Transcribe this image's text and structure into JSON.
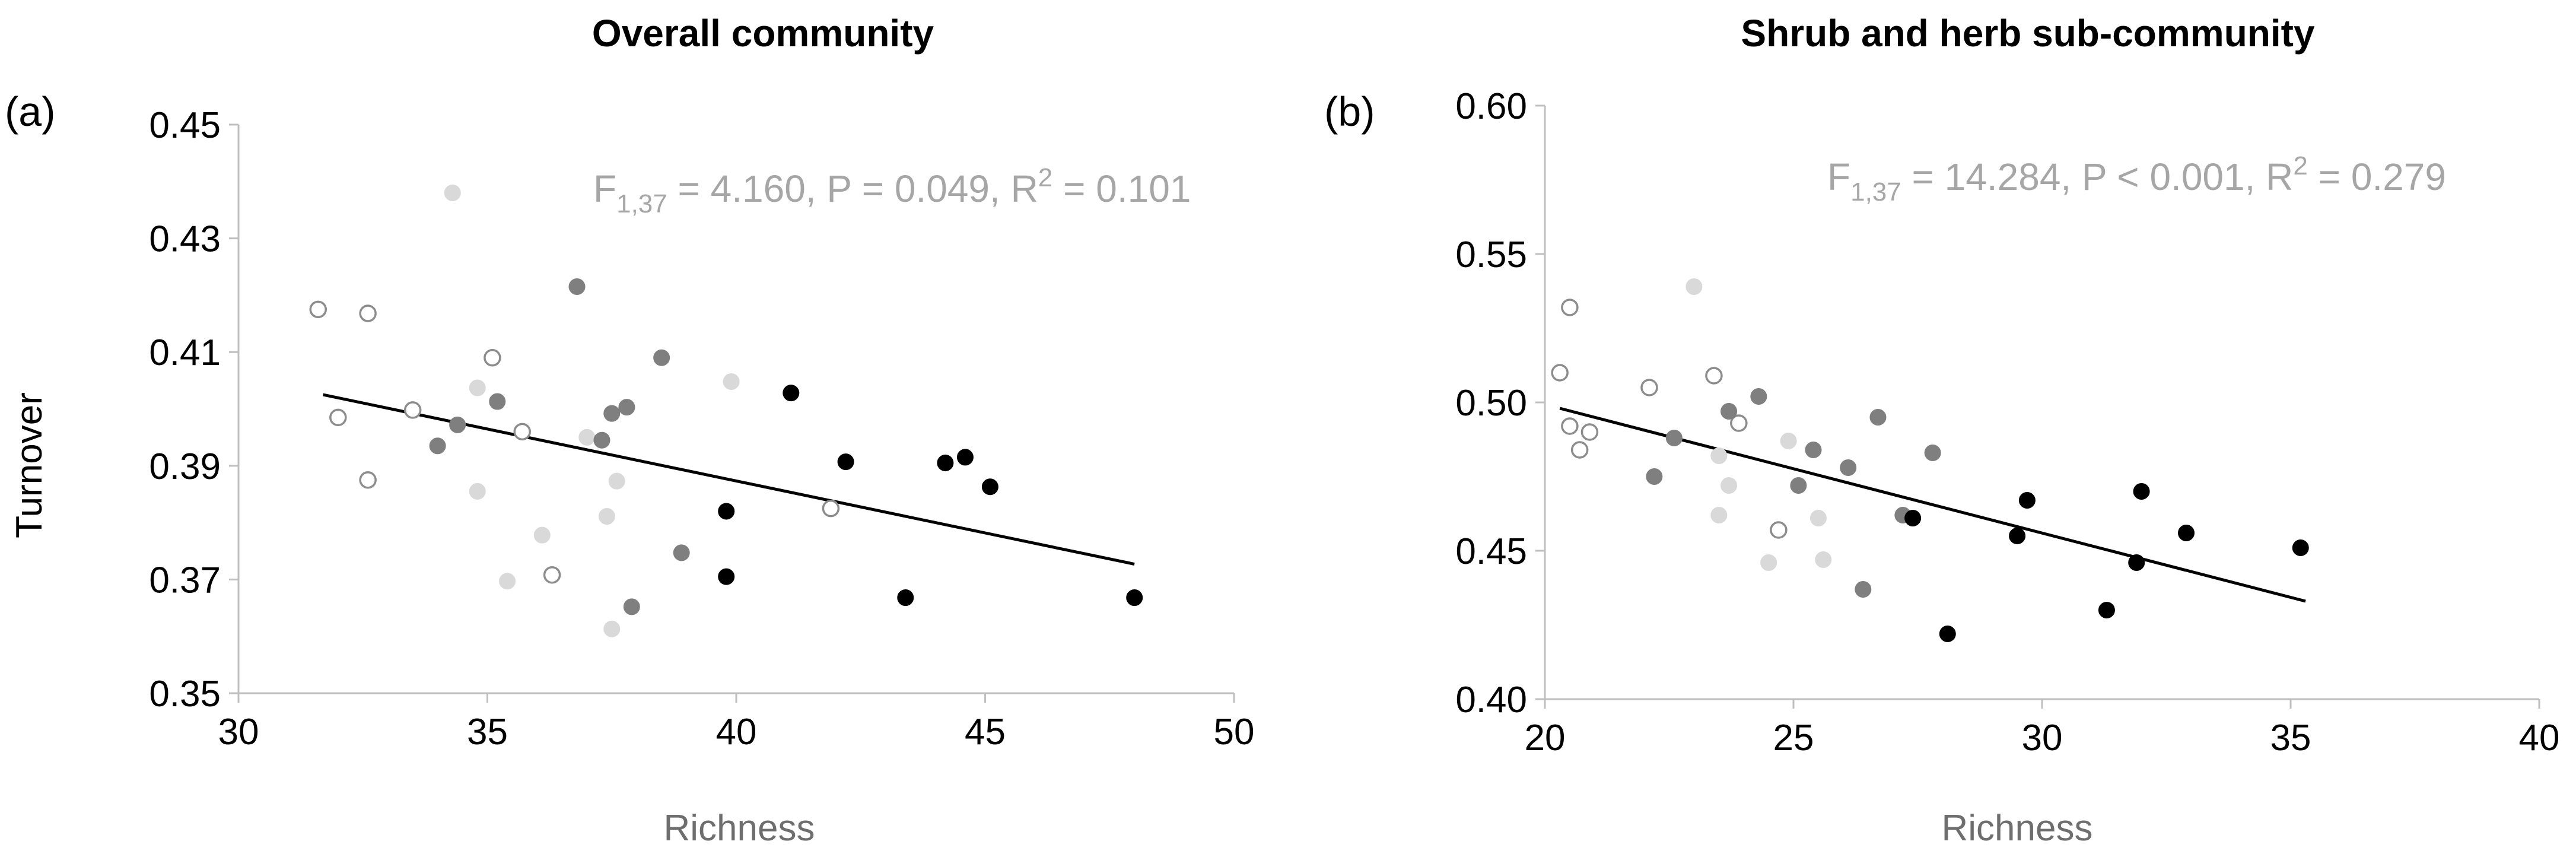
{
  "chart_data": [
    {
      "type": "scatter",
      "panel_label": "(a)",
      "title": "Overall community",
      "xlabel": "Richness",
      "ylabel": "Turnover",
      "xlim": [
        30,
        50
      ],
      "ylim": [
        0.35,
        0.45
      ],
      "x_ticks": [
        "30",
        "35",
        "40",
        "45",
        "50"
      ],
      "y_ticks": [
        "0.35",
        "0.37",
        "0.39",
        "0.41",
        "0.43",
        "0.45"
      ],
      "annotation": {
        "f_prefix": "F",
        "f_sub": "1,37",
        "f_rest": " = 4.160, P = 0.049, R",
        "r2_sup": "2",
        "r2_value": " = 0.101"
      },
      "trendline": {
        "x": [
          31.7,
          48.0
        ],
        "y": [
          0.4025,
          0.3727
        ]
      },
      "series": [
        {
          "name": "open circles",
          "style": "open",
          "stroke": "#8c8c8c",
          "fill": "#ffffff",
          "x": [
            31.6,
            32.0,
            32.6,
            32.6,
            33.5,
            35.1,
            35.7,
            36.3,
            41.9
          ],
          "y": [
            0.4175,
            0.3985,
            0.4168,
            0.3875,
            0.3998,
            0.409,
            0.396,
            0.3708,
            0.3825
          ]
        },
        {
          "name": "light grey",
          "style": "filled",
          "stroke": "#d9d9d9",
          "fill": "#d9d9d9",
          "x": [
            34.3,
            34.8,
            34.8,
            35.4,
            36.1,
            37.0,
            37.4,
            37.5,
            37.6,
            39.9
          ],
          "y": [
            0.438,
            0.4037,
            0.3855,
            0.3697,
            0.3778,
            0.395,
            0.3811,
            0.3613,
            0.3873,
            0.4048
          ]
        },
        {
          "name": "dark grey",
          "style": "filled",
          "stroke": "#7f7f7f",
          "fill": "#7f7f7f",
          "x": [
            34.0,
            34.4,
            35.2,
            36.8,
            37.3,
            37.5,
            37.8,
            37.9,
            38.5,
            38.9
          ],
          "y": [
            0.3935,
            0.3972,
            0.4013,
            0.4215,
            0.3945,
            0.3992,
            0.4003,
            0.3652,
            0.409,
            0.3747
          ]
        },
        {
          "name": "black",
          "style": "filled",
          "stroke": "#000000",
          "fill": "#000000",
          "x": [
            39.8,
            39.8,
            41.1,
            42.2,
            43.4,
            44.2,
            44.6,
            45.1,
            48.0
          ],
          "y": [
            0.382,
            0.3705,
            0.4028,
            0.3907,
            0.3668,
            0.3905,
            0.3915,
            0.3863,
            0.3668
          ]
        }
      ]
    },
    {
      "type": "scatter",
      "panel_label": "(b)",
      "title": "Shrub and herb sub-community",
      "xlabel": "Richness",
      "ylabel": "",
      "xlim": [
        20,
        40
      ],
      "ylim": [
        0.4,
        0.6
      ],
      "x_ticks": [
        "20",
        "25",
        "30",
        "35",
        "40"
      ],
      "y_ticks": [
        "0.40",
        "0.45",
        "0.50",
        "0.55",
        "0.60"
      ],
      "annotation": {
        "f_prefix": "F",
        "f_sub": "1,37",
        "f_rest": " = 14.284, P < 0.001, R",
        "r2_sup": "2",
        "r2_value": " = 0.279"
      },
      "trendline": {
        "x": [
          20.3,
          35.3
        ],
        "y": [
          0.498,
          0.433
        ]
      },
      "series": [
        {
          "name": "open circles",
          "style": "open",
          "stroke": "#8c8c8c",
          "fill": "#ffffff",
          "x": [
            20.3,
            20.5,
            20.5,
            20.7,
            20.9,
            22.1,
            23.4,
            23.9,
            24.7
          ],
          "y": [
            0.51,
            0.532,
            0.492,
            0.484,
            0.49,
            0.505,
            0.509,
            0.493,
            0.457
          ]
        },
        {
          "name": "light grey",
          "style": "filled",
          "stroke": "#d9d9d9",
          "fill": "#d9d9d9",
          "x": [
            23.0,
            23.5,
            23.5,
            23.7,
            24.5,
            24.9,
            25.5,
            25.6
          ],
          "y": [
            0.539,
            0.482,
            0.462,
            0.472,
            0.446,
            0.487,
            0.461,
            0.447
          ]
        },
        {
          "name": "dark grey",
          "style": "filled",
          "stroke": "#7f7f7f",
          "fill": "#7f7f7f",
          "x": [
            22.2,
            22.6,
            23.7,
            24.3,
            25.1,
            25.4,
            26.1,
            26.4,
            26.7,
            27.2,
            27.8
          ],
          "y": [
            0.475,
            0.488,
            0.497,
            0.502,
            0.472,
            0.484,
            0.478,
            0.437,
            0.495,
            0.462,
            0.483
          ]
        },
        {
          "name": "black",
          "style": "filled",
          "stroke": "#000000",
          "fill": "#000000",
          "x": [
            27.4,
            28.1,
            29.5,
            29.7,
            31.3,
            31.9,
            32.0,
            32.9,
            35.2
          ],
          "y": [
            0.461,
            0.422,
            0.455,
            0.467,
            0.43,
            0.446,
            0.47,
            0.456,
            0.451
          ]
        }
      ]
    }
  ]
}
